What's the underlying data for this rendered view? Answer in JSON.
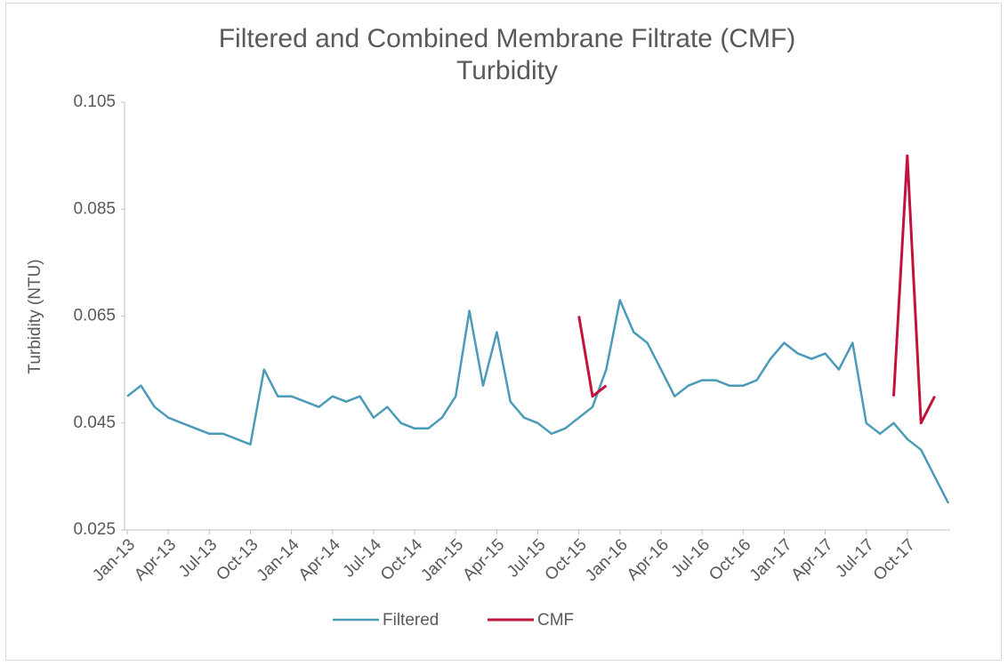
{
  "chart_data": {
    "type": "line",
    "title": "Filtered and Combined Membrane Filtrate (CMF) Turbidity",
    "y_label": "Turbidity (NTU)",
    "xlim": [
      "2013-01",
      "2018-01"
    ],
    "xticks": [
      {
        "value": "2013-01",
        "label": "Jan-13"
      },
      {
        "value": "2013-04",
        "label": "Apr-13"
      },
      {
        "value": "2013-07",
        "label": "Jul-13"
      },
      {
        "value": "2013-10",
        "label": "Oct-13"
      },
      {
        "value": "2014-01",
        "label": "Jan-14"
      },
      {
        "value": "2014-04",
        "label": "Apr-14"
      },
      {
        "value": "2014-07",
        "label": "Jul-14"
      },
      {
        "value": "2014-10",
        "label": "Oct-14"
      },
      {
        "value": "2015-01",
        "label": "Jan-15"
      },
      {
        "value": "2015-04",
        "label": "Apr-15"
      },
      {
        "value": "2015-07",
        "label": "Jul-15"
      },
      {
        "value": "2015-10",
        "label": "Oct-15"
      },
      {
        "value": "2016-01",
        "label": "Jan-16"
      },
      {
        "value": "2016-04",
        "label": "Apr-16"
      },
      {
        "value": "2016-07",
        "label": "Jul-16"
      },
      {
        "value": "2016-10",
        "label": "Oct-16"
      },
      {
        "value": "2017-01",
        "label": "Jan-17"
      },
      {
        "value": "2017-04",
        "label": "Apr-17"
      },
      {
        "value": "2017-07",
        "label": "Jul-17"
      },
      {
        "value": "2017-10",
        "label": "Oct-17"
      }
    ],
    "ylim": [
      0.025,
      0.105
    ],
    "yticks": [
      0.025,
      0.045,
      0.065,
      0.085,
      0.105
    ],
    "grid": false,
    "legend": "bottom",
    "series": [
      {
        "name": "Filtered",
        "color": "#4a9ab8",
        "x": [
          "2013-01",
          "2013-02",
          "2013-03",
          "2013-04",
          "2013-05",
          "2013-06",
          "2013-07",
          "2013-08",
          "2013-09",
          "2013-10",
          "2013-11",
          "2013-12",
          "2014-01",
          "2014-02",
          "2014-03",
          "2014-04",
          "2014-05",
          "2014-06",
          "2014-07",
          "2014-08",
          "2014-09",
          "2014-10",
          "2014-11",
          "2014-12",
          "2015-01",
          "2015-02",
          "2015-03",
          "2015-04",
          "2015-05",
          "2015-06",
          "2015-07",
          "2015-08",
          "2015-09",
          "2015-10",
          "2015-11",
          "2015-12",
          "2016-01",
          "2016-02",
          "2016-03",
          "2016-04",
          "2016-05",
          "2016-06",
          "2016-07",
          "2016-08",
          "2016-09",
          "2016-10",
          "2016-11",
          "2016-12",
          "2017-01",
          "2017-02",
          "2017-03",
          "2017-04",
          "2017-05",
          "2017-06",
          "2017-07",
          "2017-08",
          "2017-09",
          "2017-10",
          "2017-11",
          "2017-12",
          "2018-01"
        ],
        "values": [
          0.05,
          0.052,
          0.048,
          0.046,
          0.045,
          0.044,
          0.043,
          0.043,
          0.042,
          0.041,
          0.055,
          0.05,
          0.05,
          0.049,
          0.048,
          0.05,
          0.049,
          0.05,
          0.046,
          0.048,
          0.045,
          0.044,
          0.044,
          0.046,
          0.05,
          0.066,
          0.052,
          0.062,
          0.049,
          0.046,
          0.045,
          0.043,
          0.044,
          0.046,
          0.048,
          0.055,
          0.068,
          0.062,
          0.06,
          0.055,
          0.05,
          0.052,
          0.053,
          0.053,
          0.052,
          0.052,
          0.053,
          0.057,
          0.06,
          0.058,
          0.057,
          0.058,
          0.055,
          0.06,
          0.045,
          0.043,
          0.045,
          0.042,
          0.04,
          0.035,
          0.03
        ]
      },
      {
        "name": "CMF",
        "color": "#c0143c",
        "x": [
          "2015-10",
          "2015-11",
          "2015-12",
          "2016-06",
          "2017-09",
          "2017-10",
          "2017-11",
          "2017-12"
        ],
        "values": [
          0.065,
          0.05,
          0.052,
          null,
          0.05,
          0.095,
          0.045,
          0.05
        ]
      }
    ]
  }
}
